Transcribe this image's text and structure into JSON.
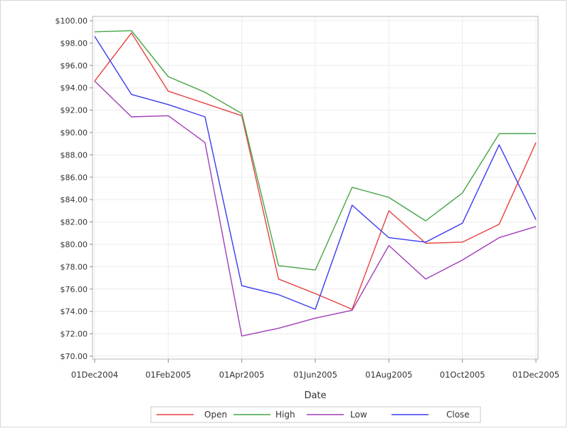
{
  "chart_data": {
    "type": "line",
    "xlabel": "Date",
    "x": [
      "01Dec2004",
      "01Jan2005",
      "01Feb2005",
      "01Mar2005",
      "01Apr2005",
      "01May2005",
      "01Jun2005",
      "01Jul2005",
      "01Aug2005",
      "01Sep2005",
      "01Oct2005",
      "01Nov2005",
      "01Dec2005"
    ],
    "x_tick_labels": [
      "01Dec2004",
      "01Feb2005",
      "01Apr2005",
      "01Jun2005",
      "01Aug2005",
      "01Oct2005",
      "01Dec2005"
    ],
    "y_tick_labels": [
      "$70.00",
      "$72.00",
      "$74.00",
      "$76.00",
      "$78.00",
      "$80.00",
      "$82.00",
      "$84.00",
      "$86.00",
      "$88.00",
      "$90.00",
      "$92.00",
      "$94.00",
      "$96.00",
      "$98.00",
      "$100.00"
    ],
    "ylim": [
      70,
      100
    ],
    "grid": true,
    "legend_position": "bottom",
    "series": [
      {
        "name": "Open",
        "color": "#e8413f",
        "values": [
          94.6,
          98.9,
          93.7,
          92.6,
          91.5,
          76.9,
          75.6,
          74.2,
          83.0,
          80.1,
          80.2,
          81.8,
          89.1
        ]
      },
      {
        "name": "High",
        "color": "#47a447",
        "values": [
          99.0,
          99.1,
          95.0,
          93.6,
          91.7,
          78.1,
          77.7,
          85.1,
          84.2,
          82.1,
          84.6,
          89.9,
          89.9
        ]
      },
      {
        "name": "Low",
        "color": "#a03fb8",
        "values": [
          94.6,
          91.4,
          91.5,
          89.1,
          71.8,
          72.5,
          73.4,
          74.1,
          79.9,
          76.9,
          78.6,
          80.6,
          81.6
        ]
      },
      {
        "name": "Close",
        "color": "#3b3bf0",
        "values": [
          98.6,
          93.4,
          92.5,
          91.4,
          76.3,
          75.5,
          74.2,
          83.5,
          80.6,
          80.2,
          81.9,
          88.9,
          82.2
        ]
      }
    ]
  }
}
